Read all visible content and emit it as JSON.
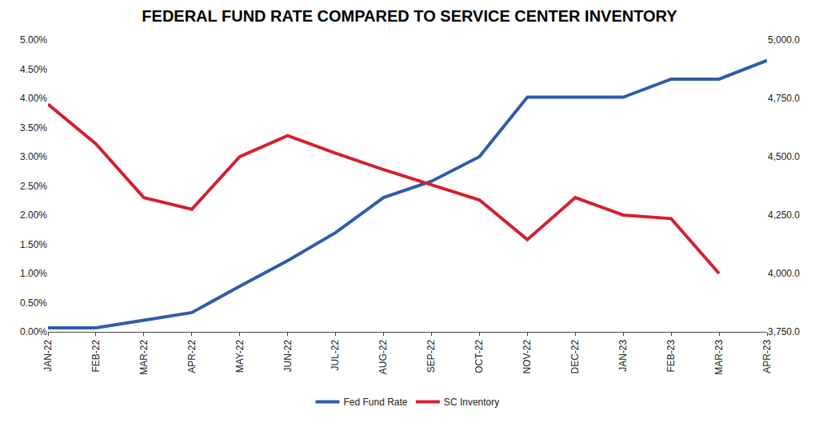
{
  "chart_data": {
    "type": "line",
    "title": "FEDERAL FUND RATE COMPARED TO SERVICE CENTER INVENTORY",
    "categories": [
      "JAN-22",
      "FEB-22",
      "MAR-22",
      "APR-22",
      "MAY-22",
      "JUN-22",
      "JUL-22",
      "AUG-22",
      "SEP-22",
      "OCT-22",
      "NOV-22",
      "DEC-22",
      "JAN-23",
      "FEB-23",
      "MAR-23",
      "APR-23"
    ],
    "series": [
      {
        "name": "Fed Fund Rate",
        "color": "#2E5DA8",
        "values": [
          0.07,
          0.07,
          0.2,
          0.33,
          0.78,
          1.22,
          1.7,
          2.3,
          2.58,
          3.0,
          4.02,
          4.02,
          4.02,
          4.33,
          4.33,
          4.65
        ]
      },
      {
        "name": "SC Inventory",
        "color": "#D42030",
        "axis": "y2",
        "values": [
          4725,
          4555,
          4325,
          4275,
          4500,
          4590,
          4515,
          4445,
          4380,
          4315,
          4145,
          4325,
          4250,
          4235,
          4000,
          null
        ]
      }
    ],
    "ylim": [
      0,
      5
    ],
    "yticks": [
      {
        "value": 0,
        "label": "0.00%"
      },
      {
        "value": 0.5,
        "label": "0.50%"
      },
      {
        "value": 1,
        "label": "1.00%"
      },
      {
        "value": 1.5,
        "label": "1.50%"
      },
      {
        "value": 2,
        "label": "2.00%"
      },
      {
        "value": 2.5,
        "label": "2.50%"
      },
      {
        "value": 3,
        "label": "3.00%"
      },
      {
        "value": 3.5,
        "label": "3.50%"
      },
      {
        "value": 4,
        "label": "4.00%"
      },
      {
        "value": 4.5,
        "label": "4.50%"
      },
      {
        "value": 5,
        "label": "5.00%"
      }
    ],
    "y2lim": [
      3750,
      5000
    ],
    "y2ticks": [
      {
        "value": 3750,
        "label": "3,750.0"
      },
      {
        "value": 4000,
        "label": "4,000.0"
      },
      {
        "value": 4250,
        "label": "4,250.0"
      },
      {
        "value": 4500,
        "label": "4,500.0"
      },
      {
        "value": 4750,
        "label": "4,750.0"
      },
      {
        "value": 5000,
        "label": "5,000.0"
      }
    ],
    "grid": false,
    "legend": "bottom"
  }
}
